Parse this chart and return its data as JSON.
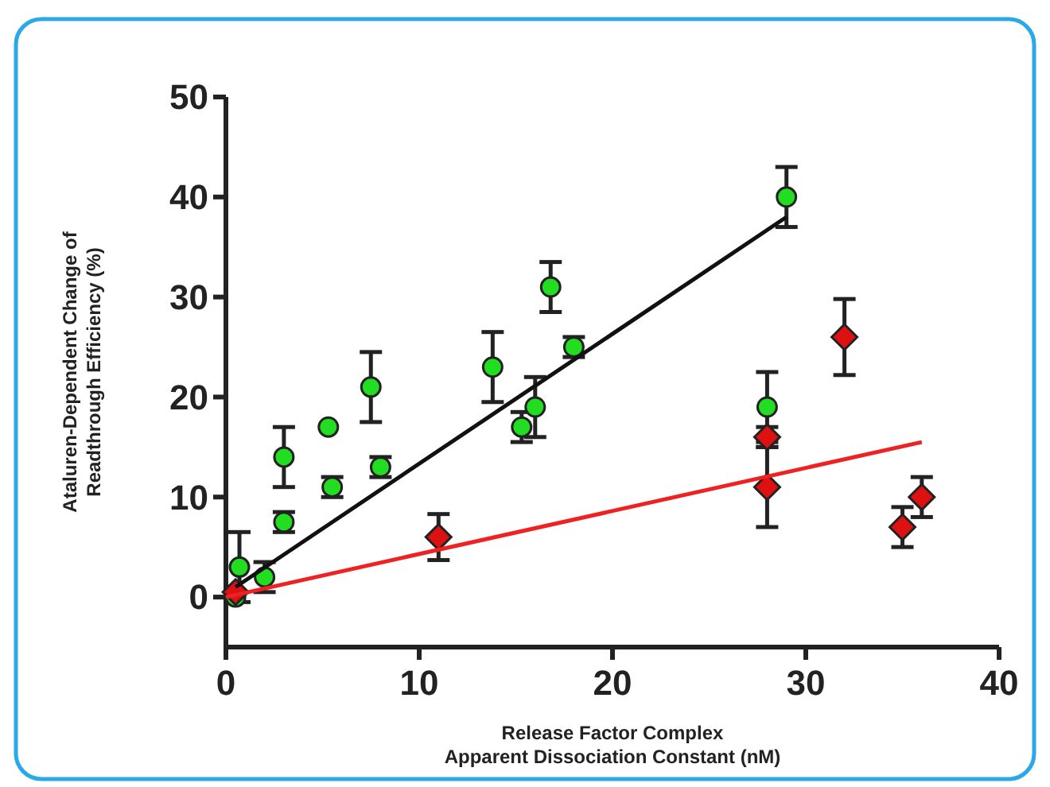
{
  "chart_data": {
    "type": "scatter",
    "xlabel": "Release Factor Complex\nApparent Dissociation Constant (nM)",
    "ylabel": "Ataluren-Dependent Change of\nReadthrough Efficiency (%)",
    "xlim": [
      0,
      40
    ],
    "ylim": [
      -5,
      50
    ],
    "xticks": [
      0,
      10,
      20,
      30,
      40
    ],
    "yticks": [
      0,
      10,
      20,
      30,
      40,
      50
    ],
    "grid": false,
    "series": [
      {
        "marker": "circle",
        "color": "#22dd22",
        "x": [
          0.5,
          0.7,
          2,
          3,
          3,
          5.3,
          5.5,
          7.5,
          8,
          13.8,
          15.3,
          16,
          16.8,
          18,
          28,
          29
        ],
        "values": [
          0,
          3,
          2,
          7.5,
          14,
          17,
          11,
          21,
          13,
          23,
          17,
          19,
          31,
          25,
          19,
          40
        ],
        "errors": [
          null,
          3.5,
          1.5,
          1,
          3,
          null,
          1,
          3.5,
          1,
          3.5,
          1.5,
          3,
          2.5,
          1,
          3.5,
          3
        ]
      },
      {
        "marker": "diamond",
        "color": "#dd1111",
        "x": [
          0.5,
          11,
          28,
          28,
          32,
          35,
          36
        ],
        "values": [
          0.5,
          6,
          16,
          11,
          26,
          7,
          10
        ],
        "errors": [
          null,
          2.3,
          1,
          4,
          3.8,
          2,
          2
        ]
      },
      {
        "type": "line",
        "marker": "none",
        "color": "#111111",
        "x": [
          0.5,
          29
        ],
        "values": [
          1,
          38
        ]
      },
      {
        "type": "line",
        "marker": "none",
        "color": "#ee2222",
        "x": [
          0,
          36
        ],
        "values": [
          0,
          15.5
        ]
      }
    ]
  }
}
